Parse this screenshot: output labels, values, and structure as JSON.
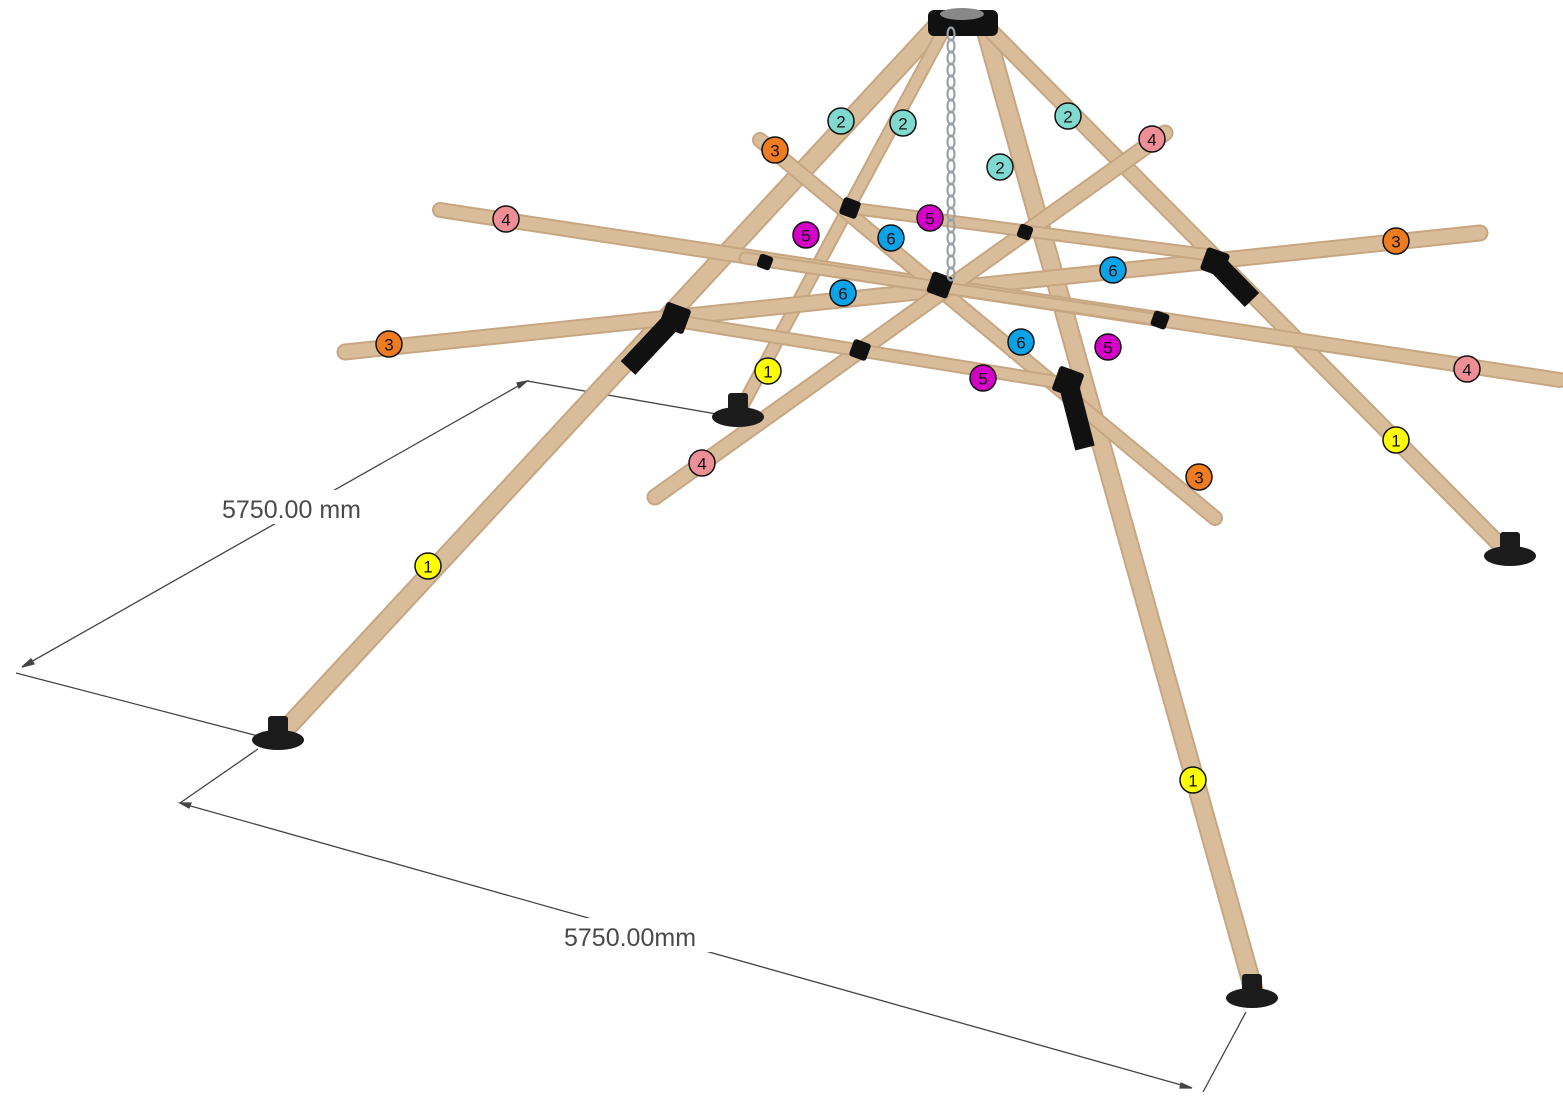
{
  "dimensions": {
    "side_left": "5750.00 mm",
    "side_front": "5750.00mm"
  },
  "part_colors": {
    "1": "#ffff00",
    "2": "#7fd9cf",
    "3": "#f07c22",
    "4": "#ee8f98",
    "5": "#d400c8",
    "6": "#0ba3e8"
  },
  "materials": {
    "wood": "#d9bd9b",
    "wood_shade": "#c7a682",
    "connector": "#111111",
    "chain": "#9aa1a6"
  },
  "labels": [
    "1",
    "1",
    "1",
    "1",
    "2",
    "2",
    "2",
    "2",
    "3",
    "3",
    "3",
    "3",
    "4",
    "4",
    "4",
    "4",
    "5",
    "5",
    "5",
    "5",
    "6",
    "6",
    "6",
    "6"
  ]
}
